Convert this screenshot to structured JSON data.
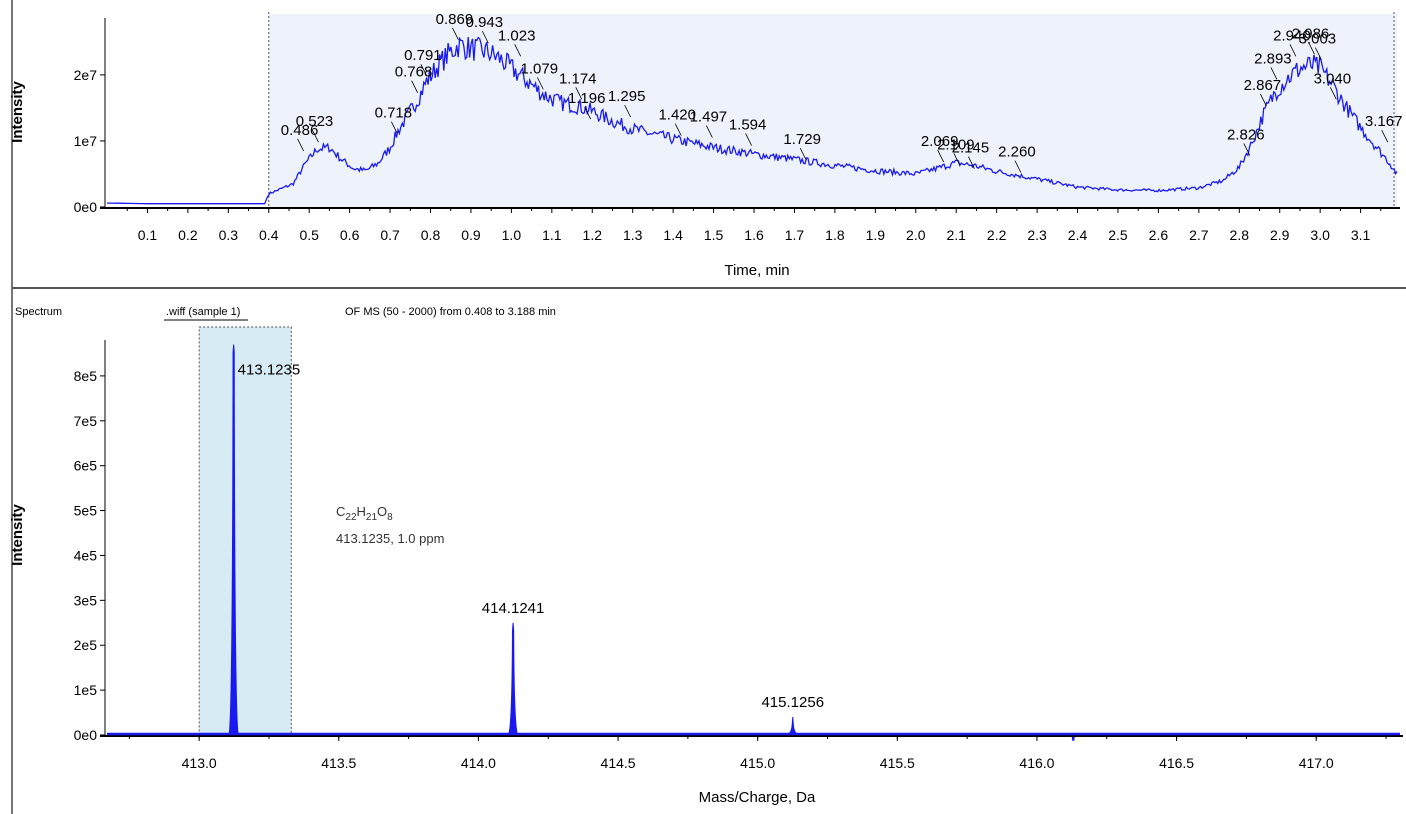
{
  "colors": {
    "trace": "#1a1af0",
    "fill": "#eef3fb",
    "selection": "#d6ebf3",
    "axis": "#000000"
  },
  "chromatogram": {
    "ylabel": "Intensity",
    "xlabel": "Time, min",
    "range_start_label": "0.486"
  },
  "spectrum": {
    "title": "Spectrum",
    "sample_label": ".wiff (sample 1)",
    "scan_info": "OF MS (50 - 2000) from 0.408 to 3.188 min",
    "ylabel": "Intensity",
    "xlabel": "Mass/Charge, Da",
    "formula": {
      "c": "C",
      "c_n": "22",
      "h": "H",
      "h_n": "21",
      "o": "O",
      "o_n": "8"
    },
    "formula_note": "413.1235, 1.0 ppm"
  },
  "chart_data": [
    {
      "type": "line",
      "title": "",
      "xlabel": "Time, min",
      "ylabel": "Intensity",
      "xlim": [
        0.0,
        3.19
      ],
      "ylim": [
        0,
        28000000
      ],
      "x_ticks": [
        "0.1",
        "0.2",
        "0.3",
        "0.4",
        "0.5",
        "0.6",
        "0.7",
        "0.8",
        "0.9",
        "1.0",
        "1.1",
        "1.2",
        "1.3",
        "1.4",
        "1.5",
        "1.6",
        "1.7",
        "1.8",
        "1.9",
        "2.0",
        "2.1",
        "2.2",
        "2.3",
        "2.4",
        "2.5",
        "2.6",
        "2.7",
        "2.8",
        "2.9",
        "3.0",
        "3.1"
      ],
      "y_ticks": [
        {
          "v": 0,
          "label": "0e0"
        },
        {
          "v": 10000000,
          "label": "1e7"
        },
        {
          "v": 20000000,
          "label": "2e7"
        }
      ],
      "series": [
        {
          "x": [
            0.0,
            0.1,
            0.2,
            0.3,
            0.39,
            0.4,
            0.42,
            0.46,
            0.49,
            0.52,
            0.55,
            0.58,
            0.61,
            0.64,
            0.67,
            0.7,
            0.72,
            0.75,
            0.77,
            0.79,
            0.82,
            0.85,
            0.87,
            0.9,
            0.94,
            0.97,
            1.0,
            1.02,
            1.05,
            1.08,
            1.12,
            1.17,
            1.2,
            1.25,
            1.3,
            1.35,
            1.42,
            1.5,
            1.6,
            1.7,
            1.8,
            1.9,
            2.0,
            2.05,
            2.1,
            2.15,
            2.2,
            2.26,
            2.32,
            2.4,
            2.5,
            2.6,
            2.7,
            2.76,
            2.8,
            2.83,
            2.86,
            2.89,
            2.92,
            2.95,
            2.98,
            3.0,
            3.03,
            3.06,
            3.1,
            3.14,
            3.17,
            3.19
          ],
          "y": [
            600000,
            500000,
            500000,
            500000,
            500000,
            2000000,
            2500000,
            3500000,
            6500000,
            8800000,
            9000000,
            7200000,
            5800000,
            5500000,
            6600000,
            9000000,
            11500000,
            14500000,
            16500000,
            19000000,
            21500000,
            23500000,
            24500000,
            24000000,
            23500000,
            22500000,
            21000000,
            20000000,
            18500000,
            17000000,
            15800000,
            15200000,
            14500000,
            13000000,
            11800000,
            11000000,
            10000000,
            9000000,
            8000000,
            7200000,
            6300000,
            5500000,
            5000000,
            5800000,
            6700000,
            6200000,
            5400000,
            4700000,
            4000000,
            3000000,
            2600000,
            2500000,
            2900000,
            4000000,
            6000000,
            9500000,
            14000000,
            17500000,
            19500000,
            21000000,
            21500000,
            21000000,
            18500000,
            15500000,
            12000000,
            9000000,
            6800000,
            5000000
          ]
        }
      ],
      "peak_labels": [
        {
          "label": "0.486",
          "x": 0.486,
          "y": 8200000
        },
        {
          "label": "0.523",
          "x": 0.523,
          "y": 9500000
        },
        {
          "label": "0.718",
          "x": 0.718,
          "y": 10800000
        },
        {
          "label": "0.768",
          "x": 0.768,
          "y": 17000000
        },
        {
          "label": "0.791",
          "x": 0.791,
          "y": 19500000
        },
        {
          "label": "0.869",
          "x": 0.869,
          "y": 25000000
        },
        {
          "label": "0.943",
          "x": 0.943,
          "y": 24500000
        },
        {
          "label": "1.023",
          "x": 1.023,
          "y": 22500000
        },
        {
          "label": "1.079",
          "x": 1.079,
          "y": 17500000
        },
        {
          "label": "1.174",
          "x": 1.174,
          "y": 16000000
        },
        {
          "label": "1.196",
          "x": 1.196,
          "y": 13000000
        },
        {
          "label": "1.295",
          "x": 1.295,
          "y": 13300000
        },
        {
          "label": "1.420",
          "x": 1.42,
          "y": 10500000
        },
        {
          "label": "1.497",
          "x": 1.497,
          "y": 10200000
        },
        {
          "label": "1.594",
          "x": 1.594,
          "y": 9000000
        },
        {
          "label": "1.729",
          "x": 1.729,
          "y": 6800000
        },
        {
          "label": "2.069",
          "x": 2.069,
          "y": 6500000
        },
        {
          "label": "2.109",
          "x": 2.109,
          "y": 6000000
        },
        {
          "label": "2.145",
          "x": 2.145,
          "y": 5500000
        },
        {
          "label": "2.260",
          "x": 2.26,
          "y": 4900000
        },
        {
          "label": "2.826",
          "x": 2.826,
          "y": 7500000
        },
        {
          "label": "2.867",
          "x": 2.867,
          "y": 15000000
        },
        {
          "label": "2.893",
          "x": 2.893,
          "y": 19000000
        },
        {
          "label": "2.940",
          "x": 2.94,
          "y": 22500000
        },
        {
          "label": "2.986",
          "x": 2.986,
          "y": 22800000
        },
        {
          "label": "3.003",
          "x": 3.003,
          "y": 22000000
        },
        {
          "label": "3.040",
          "x": 3.04,
          "y": 16000000
        },
        {
          "label": "3.167",
          "x": 3.167,
          "y": 9500000
        }
      ]
    },
    {
      "type": "line",
      "title": "",
      "xlabel": "Mass/Charge, Da",
      "ylabel": "Intensity",
      "xlim": [
        412.67,
        417.3
      ],
      "ylim": [
        0,
        880000
      ],
      "x_ticks": [
        "413.0",
        "413.5",
        "414.0",
        "414.5",
        "415.0",
        "415.5",
        "416.0",
        "416.5",
        "417.0"
      ],
      "y_ticks": [
        {
          "v": 0,
          "label": "0e0"
        },
        {
          "v": 100000,
          "label": "1e5"
        },
        {
          "v": 200000,
          "label": "2e5"
        },
        {
          "v": 300000,
          "label": "3e5"
        },
        {
          "v": 400000,
          "label": "4e5"
        },
        {
          "v": 500000,
          "label": "5e5"
        },
        {
          "v": 600000,
          "label": "6e5"
        },
        {
          "v": 700000,
          "label": "7e5"
        },
        {
          "v": 800000,
          "label": "8e5"
        }
      ],
      "highlight_range": [
        413.0,
        413.33
      ],
      "peaks": [
        {
          "mz": 413.1235,
          "intensity": 870000,
          "label": "413.1235"
        },
        {
          "mz": 414.1241,
          "intensity": 250000,
          "label": "414.1241"
        },
        {
          "mz": 415.1256,
          "intensity": 40000,
          "label": "415.1256"
        },
        {
          "mz": 416.13,
          "intensity": 5000,
          "label": ""
        }
      ]
    }
  ]
}
